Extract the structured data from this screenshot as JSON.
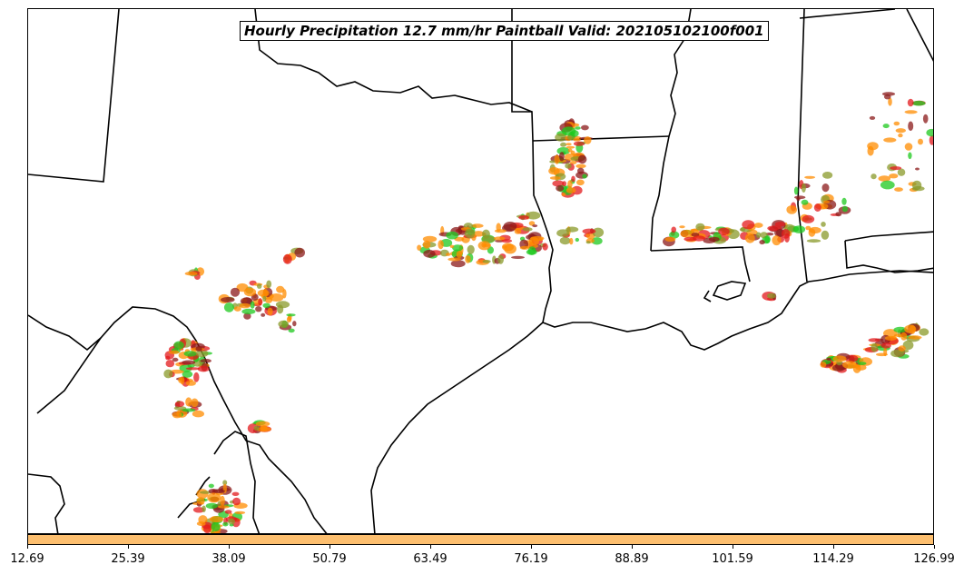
{
  "title": "Hourly Precipitation 12.7 mm/hr Paintball Valid: 202105102100f001",
  "colorbar": {
    "fill_color": "#fdbf6f",
    "ticks": [
      "12.69",
      "25.39",
      "38.09",
      "50.79",
      "63.49",
      "76.19",
      "88.89",
      "101.59",
      "114.29",
      "126.99"
    ]
  },
  "colors": {
    "paint_orange": "#ff8c00",
    "paint_red": "#e31a1c",
    "paint_green": "#1ec81e",
    "paint_olive": "#8a9a2a",
    "paint_darkred": "#8b1a1a",
    "borders": "#000000"
  }
}
